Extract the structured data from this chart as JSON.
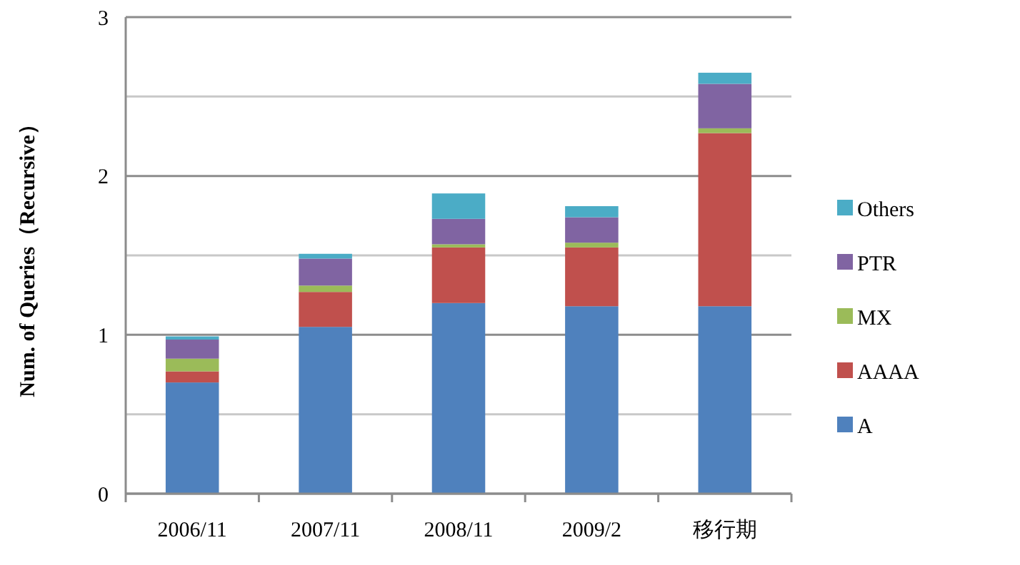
{
  "chart_data": {
    "type": "bar",
    "stacked": true,
    "ylabel": "Num. of Queries（Recursive）",
    "categories": [
      "2006/11",
      "2007/11",
      "2008/11",
      "2009/2",
      "移行期"
    ],
    "series": [
      {
        "name": "A",
        "color": "#4f81bd",
        "values": [
          0.7,
          1.05,
          1.2,
          1.18,
          1.18
        ]
      },
      {
        "name": "AAAA",
        "color": "#c0504d",
        "values": [
          0.07,
          0.22,
          0.35,
          0.37,
          1.09
        ]
      },
      {
        "name": "MX",
        "color": "#9bbb59",
        "values": [
          0.08,
          0.04,
          0.02,
          0.03,
          0.03
        ]
      },
      {
        "name": "PTR",
        "color": "#8064a2",
        "values": [
          0.12,
          0.17,
          0.16,
          0.16,
          0.28
        ]
      },
      {
        "name": "Others",
        "color": "#4bacc6",
        "values": [
          0.02,
          0.03,
          0.16,
          0.07,
          0.07
        ]
      }
    ],
    "ylim": [
      0,
      3
    ],
    "yticks": [
      0,
      {
        "value": 0.5,
        "label": null
      },
      1,
      {
        "value": 1.5,
        "label": null
      },
      2,
      {
        "value": 2.5,
        "label": null
      },
      3
    ],
    "grid": "y",
    "legend": "right"
  }
}
